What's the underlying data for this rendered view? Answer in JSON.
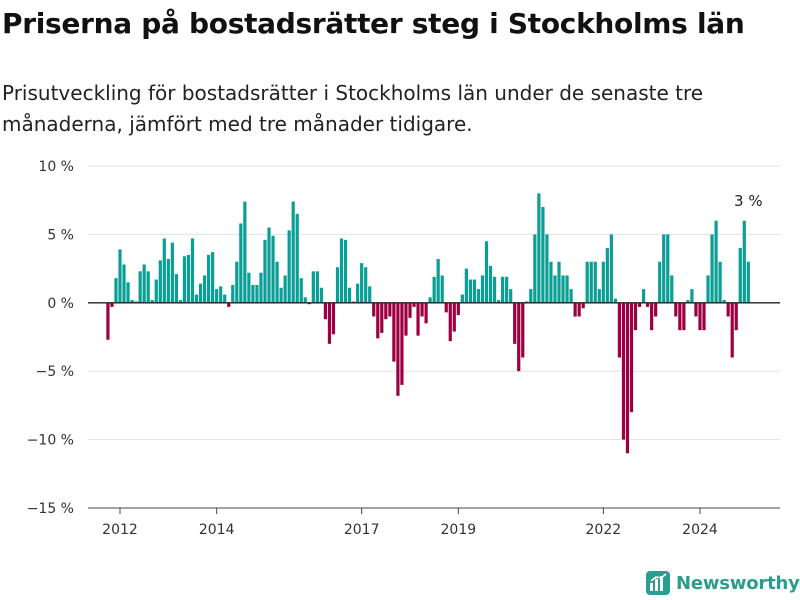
{
  "title": "Priserna på bostadsrätter steg i Stockholms län",
  "subtitle": "Prisutveckling för bostadsrätter i Stockholms län under de senaste tre månaderna, jämfört med tre månader tidigare.",
  "brand": {
    "name": "Newsworthy",
    "logo_icon": "bar-chart-logo-icon",
    "color": "#2a9d8f"
  },
  "colors": {
    "positive": "#0a9e94",
    "negative": "#9c0040",
    "grid": "#e3e3e3",
    "zero_line": "#222222",
    "axis": "#444444"
  },
  "chart_data": {
    "type": "bar",
    "title": "Priserna på bostadsrätter steg i Stockholms län",
    "xlabel": "",
    "ylabel": "",
    "ylim": [
      -15,
      10
    ],
    "y_ticks": [
      10,
      5,
      0,
      -5,
      -10,
      -15
    ],
    "y_tick_labels": [
      "10 %",
      "5 %",
      "0 %",
      "−5 %",
      "−10 %",
      "−15 %"
    ],
    "x_ticks": [
      2012,
      2014,
      2017,
      2019,
      2022,
      2024
    ],
    "x_tick_labels": [
      "2012",
      "2014",
      "2017",
      "2019",
      "2022",
      "2024"
    ],
    "x_start": 2011.75,
    "x_step": 0.08333,
    "unit": "%",
    "values": [
      -2.7,
      -0.3,
      1.8,
      3.9,
      2.8,
      1.5,
      0.2,
      0.1,
      2.3,
      2.8,
      2.3,
      0.2,
      1.7,
      3.1,
      4.7,
      3.2,
      4.4,
      2.1,
      0.2,
      3.4,
      3.5,
      4.7,
      0.6,
      1.4,
      2.0,
      3.5,
      3.7,
      1.0,
      1.2,
      0.6,
      -0.3,
      1.3,
      3.0,
      5.8,
      7.4,
      2.2,
      1.3,
      1.3,
      2.2,
      4.6,
      5.5,
      4.9,
      3.0,
      1.1,
      2.0,
      5.3,
      7.4,
      6.5,
      1.8,
      0.4,
      -0.1,
      2.3,
      2.3,
      1.1,
      -1.2,
      -3.0,
      -2.3,
      2.6,
      4.7,
      4.6,
      1.1,
      0.1,
      1.4,
      2.9,
      2.6,
      1.2,
      -1.0,
      -2.6,
      -2.2,
      -1.2,
      -1.0,
      -4.3,
      -6.8,
      -6.0,
      -2.4,
      -1.1,
      -0.3,
      -2.4,
      -1.0,
      -1.5,
      0.4,
      1.9,
      3.2,
      2.0,
      -0.7,
      -2.8,
      -2.1,
      -0.9,
      0.6,
      2.5,
      1.7,
      1.7,
      1.0,
      2.0,
      4.5,
      2.7,
      1.9,
      0.2,
      1.9,
      1.9,
      1.0,
      -3.0,
      -5.0,
      -4.0,
      0.1,
      1.0,
      5.0,
      8.0,
      7.0,
      5.0,
      3.0,
      2.0,
      3.0,
      2.0,
      2.0,
      1.0,
      -1.0,
      -1.0,
      -0.4,
      3.0,
      3.0,
      3.0,
      1.0,
      3.0,
      4.0,
      5.0,
      0.3,
      -4.0,
      -10.0,
      -11.0,
      -8.0,
      -2.0,
      -0.3,
      1.0,
      -0.3,
      -2.0,
      -1.0,
      3.0,
      5.0,
      5.0,
      2.0,
      -1.0,
      -2.0,
      -2.0,
      0.2,
      1.0,
      -1.0,
      -2.0,
      -2.0,
      2.0,
      5.0,
      6.0,
      3.0,
      0.2,
      -1.0,
      -4.0,
      -2.0,
      4.0,
      6.0,
      3.0
    ],
    "annotation": {
      "label": "3 %",
      "value": 3
    }
  }
}
